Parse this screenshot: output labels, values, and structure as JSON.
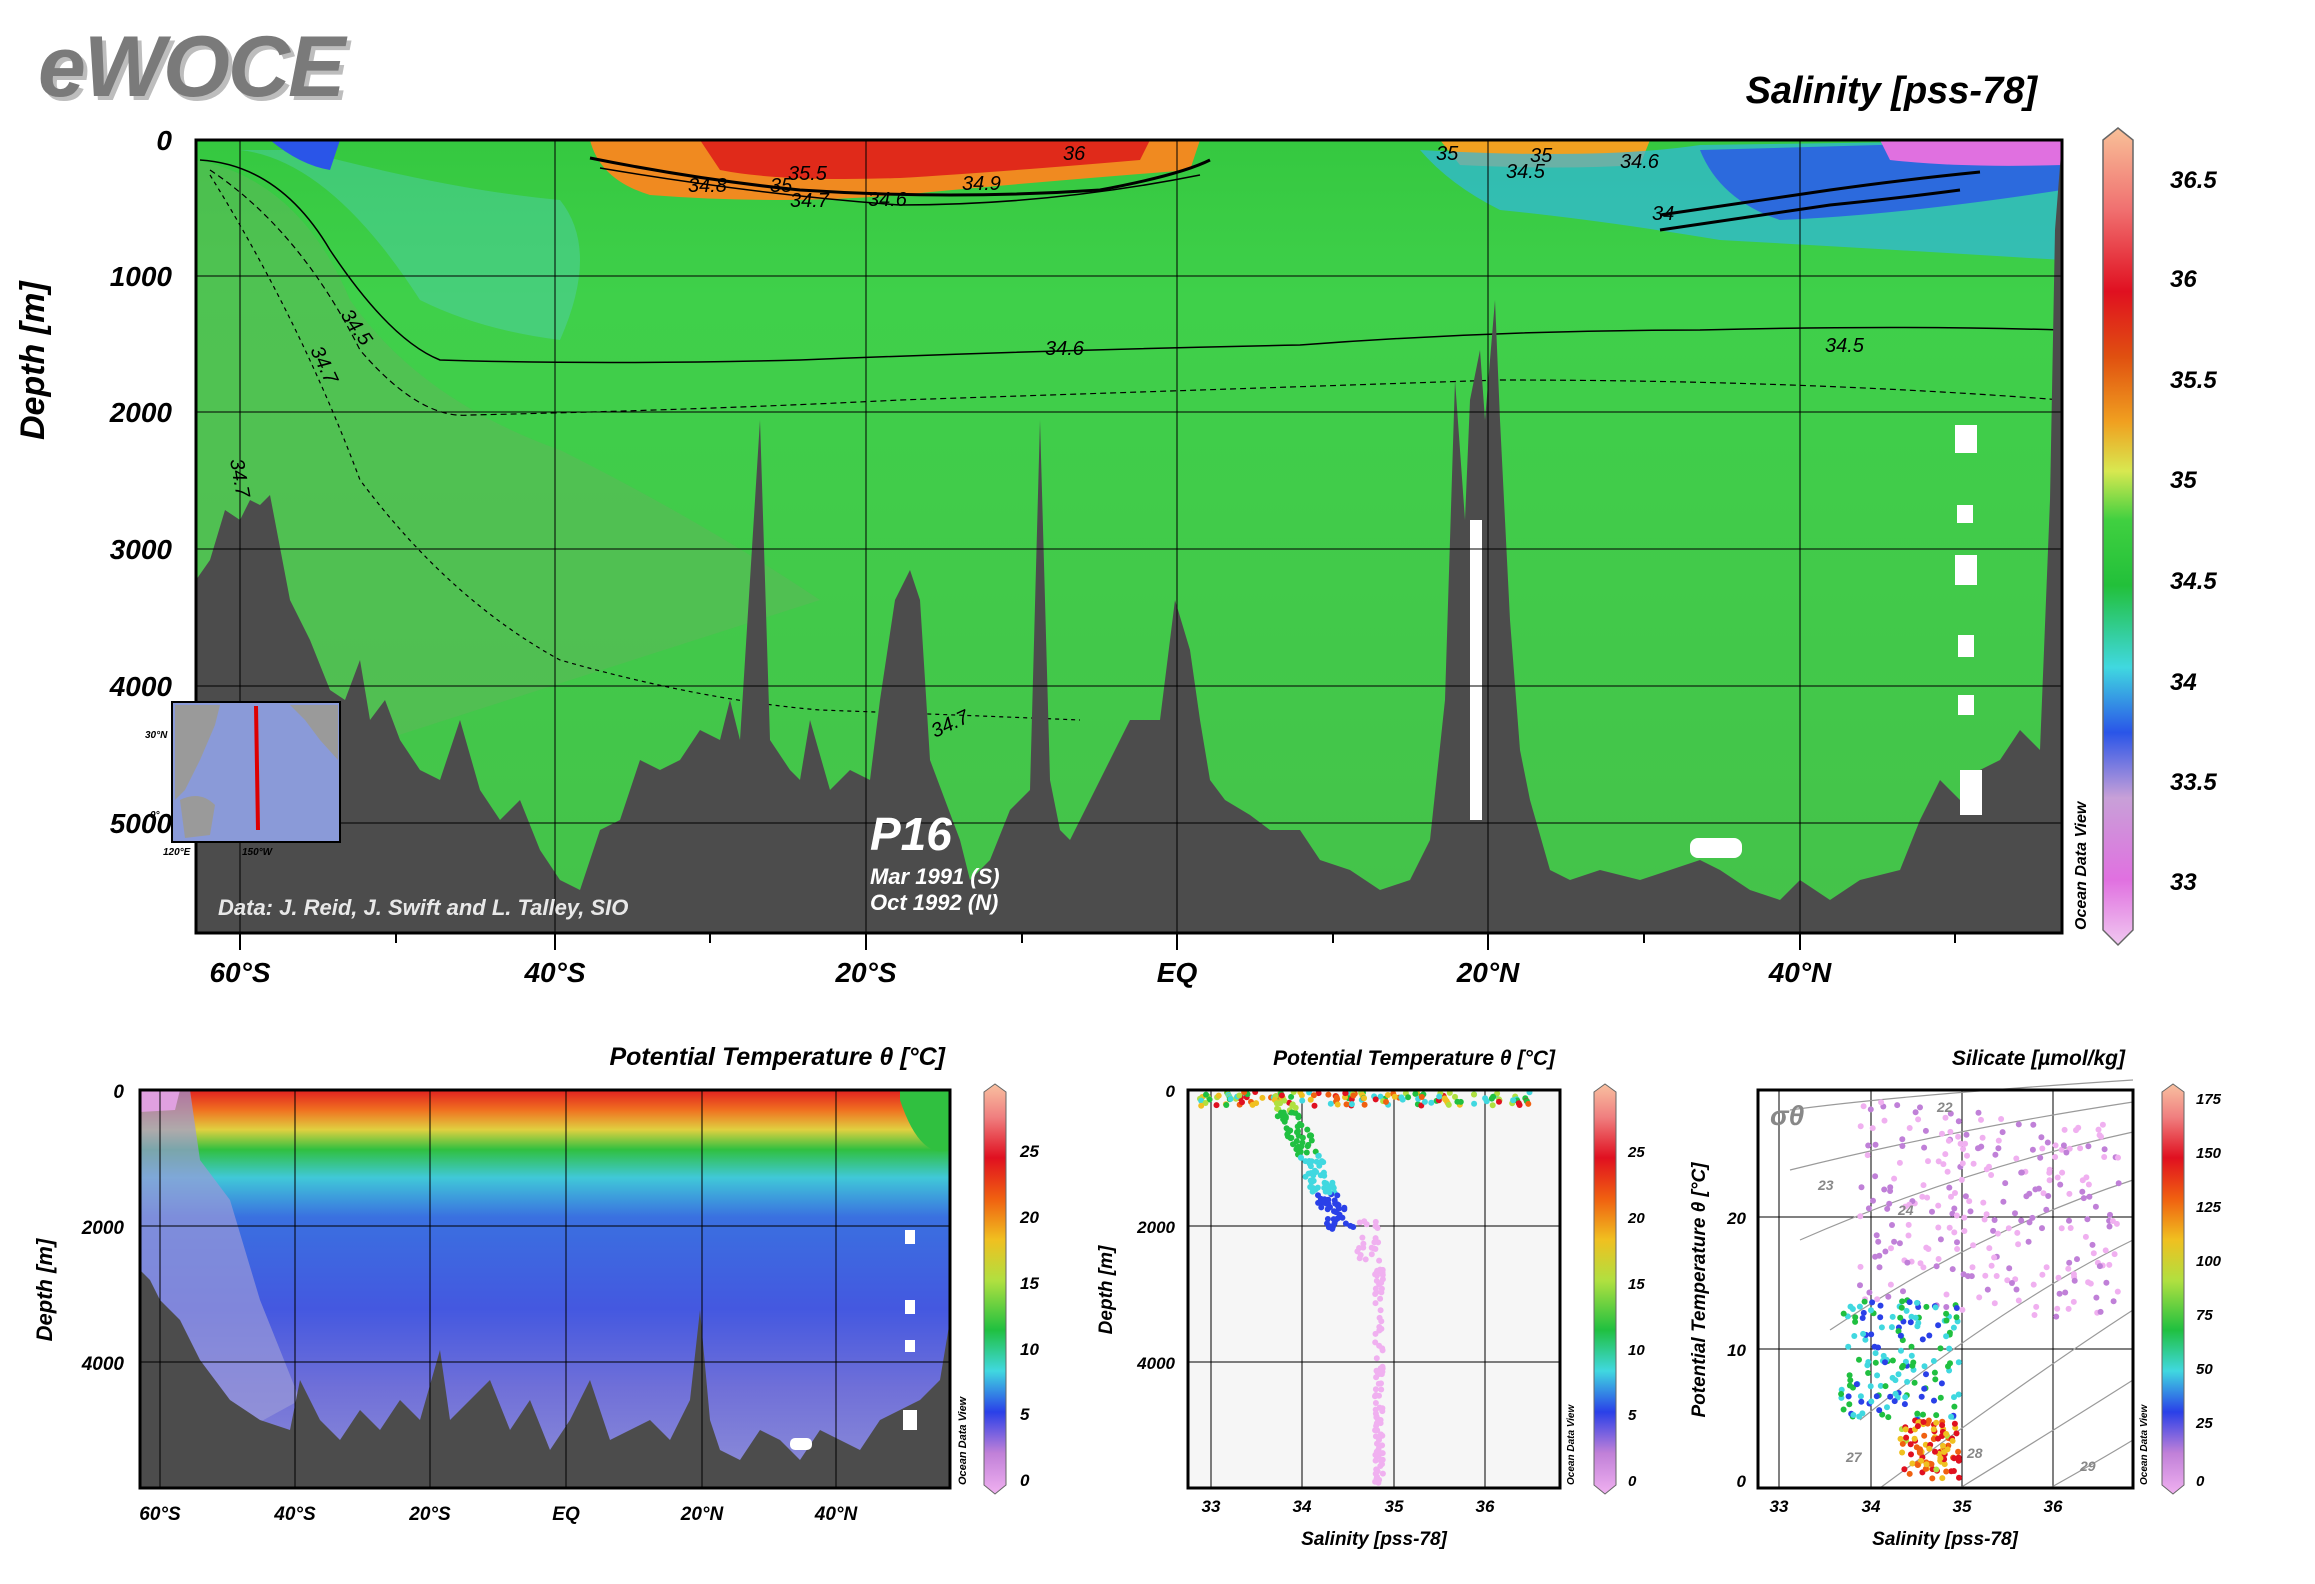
{
  "logo": "eWOCE",
  "chart_data": [
    {
      "type": "heatmap",
      "title": "Salinity [pss-78]",
      "ylabel": "Depth [m]",
      "xlabel": "",
      "x_ticks": [
        "60°S",
        "40°S",
        "20°S",
        "EQ",
        "20°N",
        "40°N"
      ],
      "y_ticks": [
        "0",
        "1000",
        "2000",
        "3000",
        "4000",
        "5000"
      ],
      "ylim": [
        5800,
        0
      ],
      "xlim": [
        -63,
        55
      ],
      "colorbar": {
        "ticks": [
          "36.5",
          "36",
          "35.5",
          "35",
          "34.5",
          "34",
          "33.5",
          "33"
        ],
        "range": [
          32.7,
          36.8
        ]
      },
      "contours": [
        {
          "label": "34.5",
          "value": 34.5
        },
        {
          "label": "34.7",
          "value": 34.7
        },
        {
          "label": "34.6",
          "value": 34.6
        },
        {
          "label": "34.8",
          "value": 34.8
        },
        {
          "label": "35",
          "value": 35
        },
        {
          "label": "35.5",
          "value": 35.5
        },
        {
          "label": "36",
          "value": 36
        },
        {
          "label": "34.9",
          "value": 34.9
        },
        {
          "label": "34",
          "value": 34
        }
      ],
      "annotations": {
        "section": "P16",
        "dates": [
          "Mar 1991 (S)",
          "Oct 1992 (N)"
        ],
        "credit": "Data: J. Reid, J. Swift and L. Talley, SIO",
        "inset_lat": [
          "30°N",
          "0°"
        ],
        "inset_lon": [
          "120°E",
          "150°W"
        ],
        "watermark": "Ocean Data View"
      }
    },
    {
      "type": "heatmap",
      "title": "Potential Temperature θ [°C]",
      "ylabel": "Depth [m]",
      "xlabel": "",
      "x_ticks": [
        "60°S",
        "40°S",
        "20°S",
        "EQ",
        "20°N",
        "40°N"
      ],
      "y_ticks": [
        "0",
        "2000",
        "4000"
      ],
      "ylim": [
        5800,
        0
      ],
      "colorbar": {
        "ticks": [
          "25",
          "20",
          "15",
          "10",
          "5",
          "0"
        ],
        "range": [
          -1,
          29
        ]
      },
      "watermark": "Ocean Data View"
    },
    {
      "type": "scatter",
      "title": "Potential Temperature θ [°C]",
      "xlabel": "Salinity [pss-78]",
      "ylabel": "Depth [m]",
      "x_ticks": [
        "33",
        "34",
        "35",
        "36"
      ],
      "y_ticks": [
        "0",
        "2000",
        "4000"
      ],
      "xlim": [
        32.7,
        36.7
      ],
      "ylim": [
        5800,
        0
      ],
      "colorbar": {
        "ticks": [
          "25",
          "20",
          "15",
          "10",
          "5",
          "0"
        ],
        "range": [
          -1,
          29
        ]
      },
      "watermark": "Ocean Data View"
    },
    {
      "type": "scatter",
      "title": "Silicate [µmol/kg]",
      "xlabel": "Salinity [pss-78]",
      "ylabel": "Potential Temperature θ [°C]",
      "x_ticks": [
        "33",
        "34",
        "35",
        "36"
      ],
      "y_ticks": [
        "0",
        "10",
        "20"
      ],
      "xlim": [
        32.7,
        36.8
      ],
      "ylim": [
        -1,
        29
      ],
      "isopycnal_labels": [
        "22",
        "23",
        "24",
        "27",
        "28",
        "29"
      ],
      "sigma_label": "σθ",
      "colorbar": {
        "ticks": [
          "175",
          "150",
          "125",
          "100",
          "75",
          "50",
          "25",
          "0"
        ],
        "range": [
          0,
          180
        ]
      },
      "watermark": "Ocean Data View"
    }
  ]
}
